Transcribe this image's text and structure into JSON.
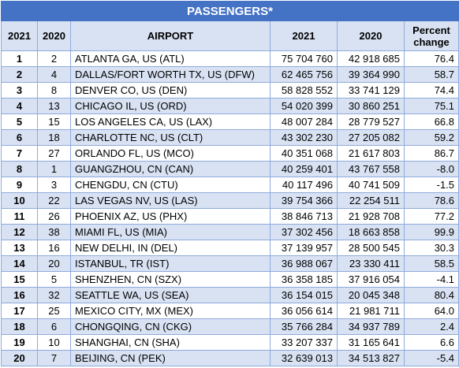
{
  "title": "PASSENGERS*",
  "columns": {
    "rank_2021": "2021",
    "rank_2020": "2020",
    "airport": "AIRPORT",
    "pax_2021": "2021",
    "pax_2020": "2020",
    "pct_change": "Percent change"
  },
  "rows": [
    {
      "r21": "1",
      "r20": "2",
      "airport": "ATLANTA GA, US (ATL)",
      "p21": "75 704 760",
      "p20": "42 918 685",
      "pct": "76.4"
    },
    {
      "r21": "2",
      "r20": "4",
      "airport": "DALLAS/FORT WORTH TX, US (DFW)",
      "p21": "62 465 756",
      "p20": "39 364 990",
      "pct": "58.7"
    },
    {
      "r21": "3",
      "r20": "8",
      "airport": "DENVER CO, US (DEN)",
      "p21": "58 828 552",
      "p20": "33 741 129",
      "pct": "74.4"
    },
    {
      "r21": "4",
      "r20": "13",
      "airport": "CHICAGO IL, US (ORD)",
      "p21": "54 020 399",
      "p20": "30 860 251",
      "pct": "75.1"
    },
    {
      "r21": "5",
      "r20": "15",
      "airport": "LOS ANGELES CA, US (LAX)",
      "p21": "48 007 284",
      "p20": "28 779 527",
      "pct": "66.8"
    },
    {
      "r21": "6",
      "r20": "18",
      "airport": "CHARLOTTE NC, US (CLT)",
      "p21": "43 302 230",
      "p20": "27 205 082",
      "pct": "59.2"
    },
    {
      "r21": "7",
      "r20": "27",
      "airport": "ORLANDO FL, US (MCO)",
      "p21": "40 351 068",
      "p20": "21 617 803",
      "pct": "86.7"
    },
    {
      "r21": "8",
      "r20": "1",
      "airport": "GUANGZHOU, CN (CAN)",
      "p21": "40 259 401",
      "p20": "43 767 558",
      "pct": "-8.0"
    },
    {
      "r21": "9",
      "r20": "3",
      "airport": "CHENGDU, CN (CTU)",
      "p21": "40 117 496",
      "p20": "40 741 509",
      "pct": "-1.5"
    },
    {
      "r21": "10",
      "r20": "22",
      "airport": "LAS VEGAS NV, US (LAS)",
      "p21": "39 754 366",
      "p20": "22 254 511",
      "pct": "78.6"
    },
    {
      "r21": "11",
      "r20": "26",
      "airport": "PHOENIX AZ, US (PHX)",
      "p21": "38 846 713",
      "p20": "21 928 708",
      "pct": "77.2"
    },
    {
      "r21": "12",
      "r20": "38",
      "airport": "MIAMI FL, US (MIA)",
      "p21": "37 302 456",
      "p20": "18 663 858",
      "pct": "99.9"
    },
    {
      "r21": "13",
      "r20": "16",
      "airport": "NEW DELHI, IN (DEL)",
      "p21": "37 139 957",
      "p20": "28 500 545",
      "pct": "30.3"
    },
    {
      "r21": "14",
      "r20": "20",
      "airport": "ISTANBUL, TR (IST)",
      "p21": "36 988 067",
      "p20": "23 330 411",
      "pct": "58.5"
    },
    {
      "r21": "15",
      "r20": "5",
      "airport": "SHENZHEN, CN (SZX)",
      "p21": "36 358 185",
      "p20": "37 916 054",
      "pct": "-4.1"
    },
    {
      "r21": "16",
      "r20": "32",
      "airport": "SEATTLE WA, US (SEA)",
      "p21": "36 154 015",
      "p20": "20 045 348",
      "pct": "80.4"
    },
    {
      "r21": "17",
      "r20": "25",
      "airport": "MEXICO CITY, MX (MEX)",
      "p21": "36 056 614",
      "p20": "21 981 711",
      "pct": "64.0"
    },
    {
      "r21": "18",
      "r20": "6",
      "airport": "CHONGQING, CN (CKG)",
      "p21": "35 766 284",
      "p20": "34 937 789",
      "pct": "2.4"
    },
    {
      "r21": "19",
      "r20": "10",
      "airport": "SHANGHAI, CN (SHA)",
      "p21": "33 207 337",
      "p20": "31 165 641",
      "pct": "6.6"
    },
    {
      "r21": "20",
      "r20": "7",
      "airport": "BEIJING, CN (PEK)",
      "p21": "32 639 013",
      "p20": "34 513 827",
      "pct": "-5.4"
    }
  ]
}
